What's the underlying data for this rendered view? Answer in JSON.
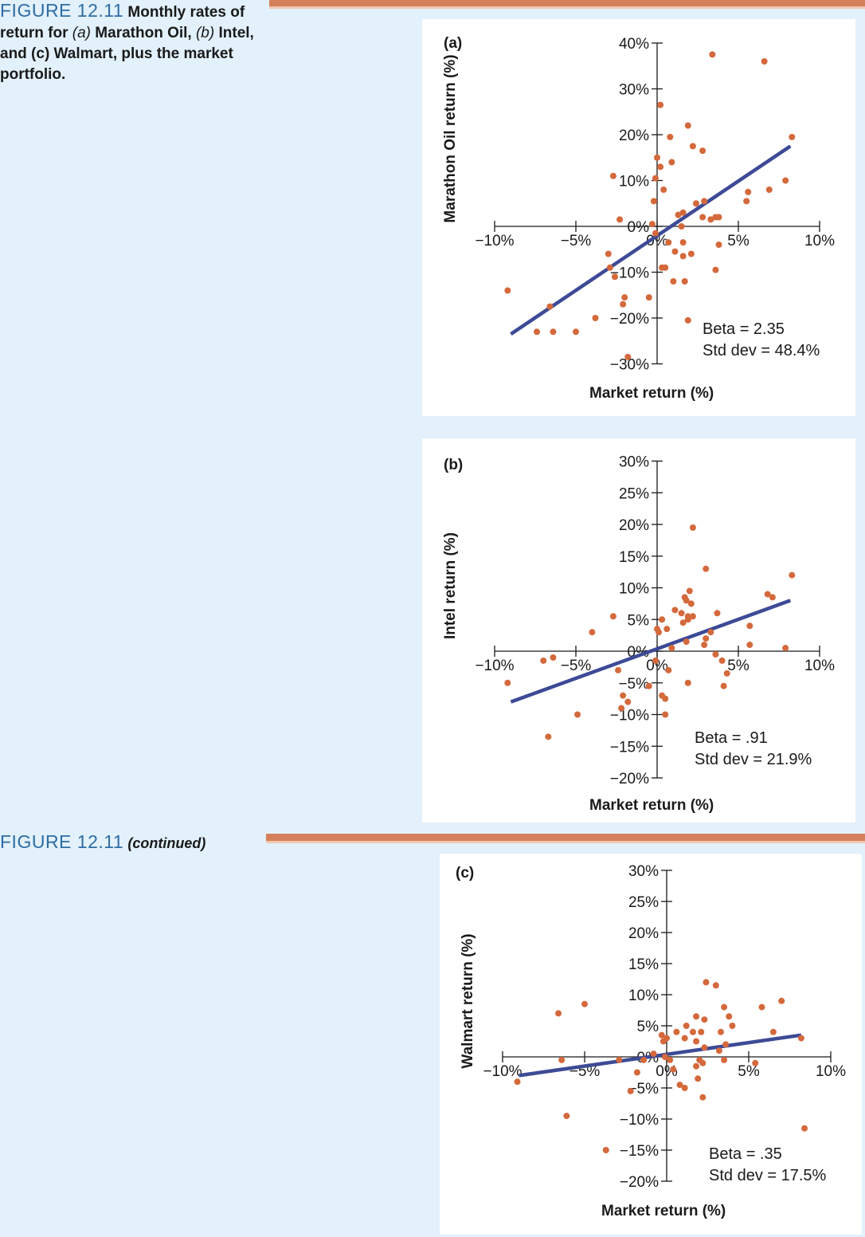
{
  "header": {
    "figure_label": "FIGURE 12.11",
    "caption_parts": [
      "Monthly rates of return for ",
      "(a)",
      " Marathon Oil, ",
      "(b)",
      " Intel, and (c) Walmart, plus the market portfolio."
    ],
    "continued_label": "FIGURE 12.11",
    "continued_text": "(continued)"
  },
  "colors": {
    "point": "#d4693c",
    "line": "#3d4a96",
    "rule": "#d4805a",
    "background": "#e2f1fb"
  },
  "chart_data": [
    {
      "type": "scatter",
      "panel_label": "(a)",
      "xlabel": "Market return (%)",
      "ylabel": "Marathon Oil return (%)",
      "xlim": [
        -10,
        10
      ],
      "ylim": [
        -30,
        40
      ],
      "xticks": [
        -10,
        -5,
        0,
        5,
        10
      ],
      "xtick_labels": [
        "−10%",
        "−5%",
        "0%",
        "5%",
        "10%"
      ],
      "yticks": [
        40,
        30,
        20,
        10,
        0,
        -10,
        -20,
        -30
      ],
      "ytick_labels": [
        "40%",
        "30%",
        "20%",
        "10%",
        "0%",
        "−10%",
        "−20%",
        "−30%"
      ],
      "regression": {
        "x": [
          -9,
          8.2
        ],
        "y": [
          -23.5,
          17.5
        ]
      },
      "annotations": [
        "Beta = 2.35",
        "Std dev = 48.4%"
      ],
      "points": [
        [
          3.4,
          37.5
        ],
        [
          6.6,
          36
        ],
        [
          0.2,
          26.5
        ],
        [
          1.9,
          22
        ],
        [
          0.8,
          19.5
        ],
        [
          2.2,
          17.5
        ],
        [
          2.8,
          16.5
        ],
        [
          8.3,
          19.5
        ],
        [
          0,
          15
        ],
        [
          0.2,
          13
        ],
        [
          0.9,
          14
        ],
        [
          -2.7,
          11
        ],
        [
          -0.1,
          10.5
        ],
        [
          0.4,
          8
        ],
        [
          -0.2,
          5.5
        ],
        [
          6.9,
          8
        ],
        [
          5.6,
          7.5
        ],
        [
          5.5,
          5.5
        ],
        [
          7.9,
          10
        ],
        [
          2.4,
          5
        ],
        [
          2.9,
          5.5
        ],
        [
          1.6,
          3
        ],
        [
          1.3,
          2.5
        ],
        [
          2.8,
          2
        ],
        [
          3.3,
          1.5
        ],
        [
          3.6,
          2
        ],
        [
          3.8,
          2
        ],
        [
          -2.3,
          1.5
        ],
        [
          1.5,
          0
        ],
        [
          -0.3,
          0.5
        ],
        [
          -0.1,
          -1.5
        ],
        [
          0.7,
          -3.5
        ],
        [
          1.6,
          -3.5
        ],
        [
          -3,
          -6
        ],
        [
          1.1,
          -5.5
        ],
        [
          1.6,
          -6.5
        ],
        [
          2.1,
          -6
        ],
        [
          3.8,
          -4
        ],
        [
          -2.9,
          -9
        ],
        [
          0.3,
          -9
        ],
        [
          0.5,
          -9
        ],
        [
          3.6,
          -9.5
        ],
        [
          -2.6,
          -11
        ],
        [
          1,
          -12
        ],
        [
          1.7,
          -12
        ],
        [
          -2,
          -15.5
        ],
        [
          -2.1,
          -17
        ],
        [
          -0.5,
          -15.5
        ],
        [
          -9.2,
          -14
        ],
        [
          -6.6,
          -17.5
        ],
        [
          -3.8,
          -20
        ],
        [
          -6.4,
          -23
        ],
        [
          -5,
          -23
        ],
        [
          -7.4,
          -23
        ],
        [
          1.9,
          -20.5
        ],
        [
          -1.8,
          -28.5
        ]
      ]
    },
    {
      "type": "scatter",
      "panel_label": "(b)",
      "xlabel": "Market return (%)",
      "ylabel": "Intel return (%)",
      "xlim": [
        -10,
        10
      ],
      "ylim": [
        -20,
        30
      ],
      "xticks": [
        -10,
        -5,
        0,
        5,
        10
      ],
      "xtick_labels": [
        "−10%",
        "−5%",
        "0%",
        "5%",
        "10%"
      ],
      "yticks": [
        30,
        25,
        20,
        15,
        10,
        5,
        0,
        -5,
        -10,
        -15,
        -20
      ],
      "ytick_labels": [
        "30%",
        "25%",
        "20%",
        "15%",
        "10%",
        "5%",
        "0%",
        "−5%",
        "−10%",
        "−15%",
        "−20%"
      ],
      "regression": {
        "x": [
          -9,
          8.2
        ],
        "y": [
          -8,
          8
        ]
      },
      "annotations": [
        "Beta = .91",
        "Std dev = 21.9%"
      ],
      "points": [
        [
          2.2,
          19.5
        ],
        [
          3,
          13
        ],
        [
          8.3,
          12
        ],
        [
          6.8,
          9
        ],
        [
          7.1,
          8.5
        ],
        [
          2,
          9.5
        ],
        [
          1.8,
          8
        ],
        [
          1.7,
          8.5
        ],
        [
          2.1,
          7.5
        ],
        [
          0.3,
          5
        ],
        [
          1.1,
          6.5
        ],
        [
          1.5,
          6
        ],
        [
          1.9,
          5.5
        ],
        [
          2.2,
          5.5
        ],
        [
          1.6,
          4.5
        ],
        [
          1.9,
          5
        ],
        [
          3.7,
          6
        ],
        [
          -2.7,
          5.5
        ],
        [
          5.7,
          4
        ],
        [
          0,
          3.5
        ],
        [
          0.1,
          3
        ],
        [
          3.3,
          3
        ],
        [
          -4,
          3
        ],
        [
          0.6,
          3.5
        ],
        [
          1.8,
          1.5
        ],
        [
          3,
          2
        ],
        [
          5.7,
          1
        ],
        [
          7.9,
          0.5
        ],
        [
          2.9,
          1
        ],
        [
          3.6,
          -0.5
        ],
        [
          4,
          -1.5
        ],
        [
          0.9,
          0.5
        ],
        [
          -0.1,
          -1.5
        ],
        [
          -6.4,
          -1
        ],
        [
          -7,
          -1.5
        ],
        [
          -2.4,
          -3
        ],
        [
          0.7,
          -3
        ],
        [
          4.3,
          -3.5
        ],
        [
          -9.2,
          -5
        ],
        [
          1.9,
          -5
        ],
        [
          4.1,
          -5.5
        ],
        [
          -0.5,
          -5.5
        ],
        [
          -2.1,
          -7
        ],
        [
          0.3,
          -7
        ],
        [
          0.5,
          -7.5
        ],
        [
          -2.2,
          -9
        ],
        [
          -4.9,
          -10
        ],
        [
          0.5,
          -10
        ],
        [
          -6.7,
          -13.5
        ],
        [
          -1.8,
          -8
        ]
      ]
    },
    {
      "type": "scatter",
      "panel_label": "(c)",
      "xlabel": "Market return (%)",
      "ylabel": "Walmart return (%)",
      "xlim": [
        -10,
        10
      ],
      "ylim": [
        -20,
        30
      ],
      "xticks": [
        -10,
        -5,
        0,
        5,
        10
      ],
      "xtick_labels": [
        "−10%",
        "−5%",
        "0%",
        "5%",
        "10%"
      ],
      "yticks": [
        30,
        25,
        20,
        15,
        10,
        5,
        0,
        -5,
        -10,
        -15,
        -20
      ],
      "ytick_labels": [
        "30%",
        "25%",
        "20%",
        "15%",
        "10%",
        "5%",
        "0%",
        "−5%",
        "−10%",
        "−15%",
        "−20%"
      ],
      "regression": {
        "x": [
          -9,
          8.2
        ],
        "y": [
          -3,
          3.5
        ]
      },
      "annotations": [
        "Beta = .35",
        "Std dev = 17.5%"
      ],
      "points": [
        [
          2.4,
          12
        ],
        [
          3,
          11.5
        ],
        [
          7,
          9
        ],
        [
          5.8,
          8
        ],
        [
          -6.6,
          7
        ],
        [
          -5,
          8.5
        ],
        [
          3.5,
          8
        ],
        [
          1.8,
          6.5
        ],
        [
          2.3,
          6
        ],
        [
          3.8,
          6.5
        ],
        [
          4,
          5
        ],
        [
          1.2,
          5
        ],
        [
          1.6,
          4
        ],
        [
          2.1,
          4
        ],
        [
          0.6,
          4
        ],
        [
          3.3,
          4
        ],
        [
          6.5,
          4
        ],
        [
          -0.3,
          3.5
        ],
        [
          1.1,
          3
        ],
        [
          0,
          3
        ],
        [
          -0.2,
          2.5
        ],
        [
          1.8,
          2.5
        ],
        [
          2.3,
          1.5
        ],
        [
          3.2,
          1
        ],
        [
          3.6,
          2
        ],
        [
          8.2,
          3
        ],
        [
          -0.1,
          0
        ],
        [
          0.2,
          -0.5
        ],
        [
          2,
          -0.5
        ],
        [
          2.2,
          -1
        ],
        [
          3.5,
          -0.5
        ],
        [
          1.8,
          -1.5
        ],
        [
          -1.4,
          -0.5
        ],
        [
          -2.9,
          -0.5
        ],
        [
          -6.4,
          -0.5
        ],
        [
          -0.8,
          0.5
        ],
        [
          0.4,
          -2
        ],
        [
          5.4,
          -1
        ],
        [
          -9.1,
          -4
        ],
        [
          -1.8,
          -2.5
        ],
        [
          1.9,
          -3.5
        ],
        [
          0.8,
          -4.5
        ],
        [
          1.1,
          -5
        ],
        [
          -2.2,
          -5.5
        ],
        [
          2.2,
          -6.5
        ],
        [
          -6.1,
          -9.5
        ],
        [
          8.4,
          -11.5
        ],
        [
          -3.7,
          -15
        ]
      ]
    }
  ]
}
